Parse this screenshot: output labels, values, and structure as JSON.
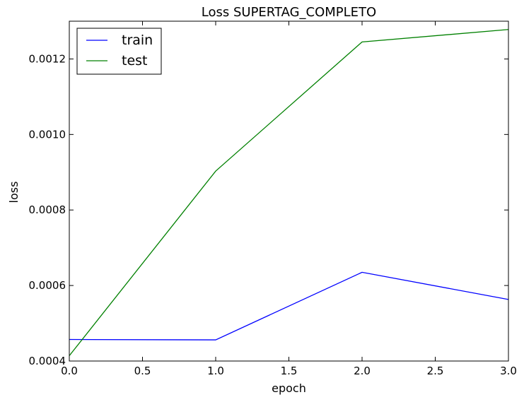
{
  "chart_data": {
    "type": "line",
    "title": "Loss SUPERTAG_COMPLETO",
    "xlabel": "epoch",
    "ylabel": "loss",
    "xlim": [
      0.0,
      3.0
    ],
    "ylim": [
      0.0004,
      0.0013
    ],
    "x_ticks": [
      "0.0",
      "0.5",
      "1.0",
      "1.5",
      "2.0",
      "2.5",
      "3.0"
    ],
    "y_ticks": [
      "0.0004",
      "0.0006",
      "0.0008",
      "0.0010",
      "0.0012"
    ],
    "grid": false,
    "legend_position": "top-left",
    "x": [
      0,
      1,
      2,
      3
    ],
    "series": [
      {
        "name": "train",
        "color": "#0000ff",
        "values": [
          0.000457,
          0.000456,
          0.000635,
          0.000563
        ]
      },
      {
        "name": "test",
        "color": "#008000",
        "values": [
          0.000414,
          0.000903,
          0.001245,
          0.001278
        ]
      }
    ]
  }
}
